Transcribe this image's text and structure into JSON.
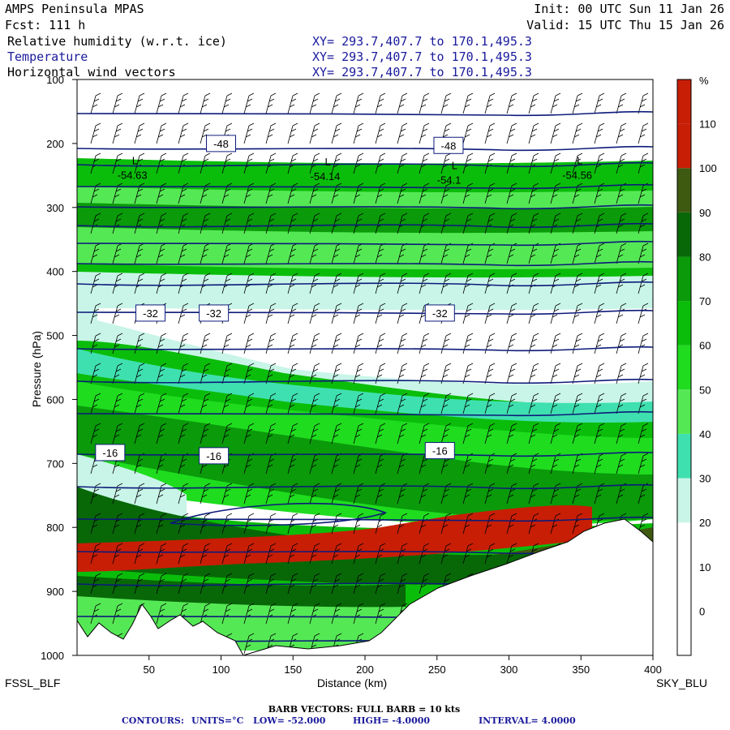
{
  "header": {
    "title": "AMPS Peninsula MPAS",
    "forecast": "Fcst:  111 h",
    "init": "Init: 00 UTC Sun 11 Jan 26",
    "valid": "Valid: 15 UTC Thu 15 Jan 26",
    "fields": [
      {
        "name": "Relative humidity (w.r.t. ice)",
        "xy": "XY= 293.7,407.7 to 170.1,495.3"
      },
      {
        "name": "Temperature",
        "xy": "XY= 293.7,407.7 to 170.1,495.3"
      },
      {
        "name": "Horizontal wind vectors",
        "xy": "XY= 293.7,407.7 to 170.1,495.3"
      }
    ]
  },
  "colors": {
    "contour": "#0d1b7a",
    "terrain": "#ffffff",
    "rh_bands": [
      "#ffffff",
      "#ffffff",
      "#ffffff",
      "#c8f5e8",
      "#3fe0b0",
      "#55e855",
      "#1fdc1f",
      "#0bbd0b",
      "#0a9a0a",
      "#086808",
      "#3e5a10",
      "#c81e06"
    ]
  },
  "chart_data": {
    "type": "heatmap",
    "title": "Relative humidity (w.r.t. ice) cross-section with temperature contours and wind barbs",
    "xlabel": "Distance (km)",
    "ylabel": "Pressure (hPa)",
    "xlim": [
      0,
      400
    ],
    "ylim": [
      1000,
      100
    ],
    "x_ticks": [
      50,
      100,
      150,
      200,
      250,
      300,
      350,
      400
    ],
    "y_ticks": [
      100,
      200,
      300,
      400,
      500,
      600,
      700,
      800,
      900,
      1000
    ],
    "left_label": "FSSL_BLF",
    "right_label": "SKY_BLU",
    "colorbar": {
      "unit": "%",
      "levels": [
        0,
        10,
        20,
        30,
        40,
        50,
        60,
        70,
        80,
        90,
        100,
        110
      ]
    },
    "contour_labels": [
      {
        "text": "-48",
        "x": 100,
        "p": 200
      },
      {
        "text": "-48",
        "x": 258,
        "p": 203
      },
      {
        "text": "-32",
        "x": 51,
        "p": 465
      },
      {
        "text": "-32",
        "x": 95,
        "p": 465
      },
      {
        "text": "-32",
        "x": 252,
        "p": 465
      },
      {
        "text": "-16",
        "x": 23,
        "p": 683
      },
      {
        "text": "-16",
        "x": 95,
        "p": 688
      },
      {
        "text": "-16",
        "x": 252,
        "p": 680
      }
    ],
    "lows": [
      {
        "label": "L",
        "value": "-54.63",
        "x": 28,
        "p": 250
      },
      {
        "label": "L",
        "value": "-54.14",
        "x": 162,
        "p": 252
      },
      {
        "label": "L",
        "value": "-54.1",
        "x": 250,
        "p": 258
      },
      {
        "label": "L",
        "value": "-54.56",
        "x": 337,
        "p": 250
      }
    ],
    "footer": {
      "barb": "BARB VECTORS:  FULL BARB = 10 kts",
      "contours_label": "CONTOURS:",
      "units": "UNITS=°C",
      "low": "LOW=  -52.000",
      "high": "HIGH=  -4.0000",
      "interval": "INTERVAL=    4.0000"
    }
  }
}
